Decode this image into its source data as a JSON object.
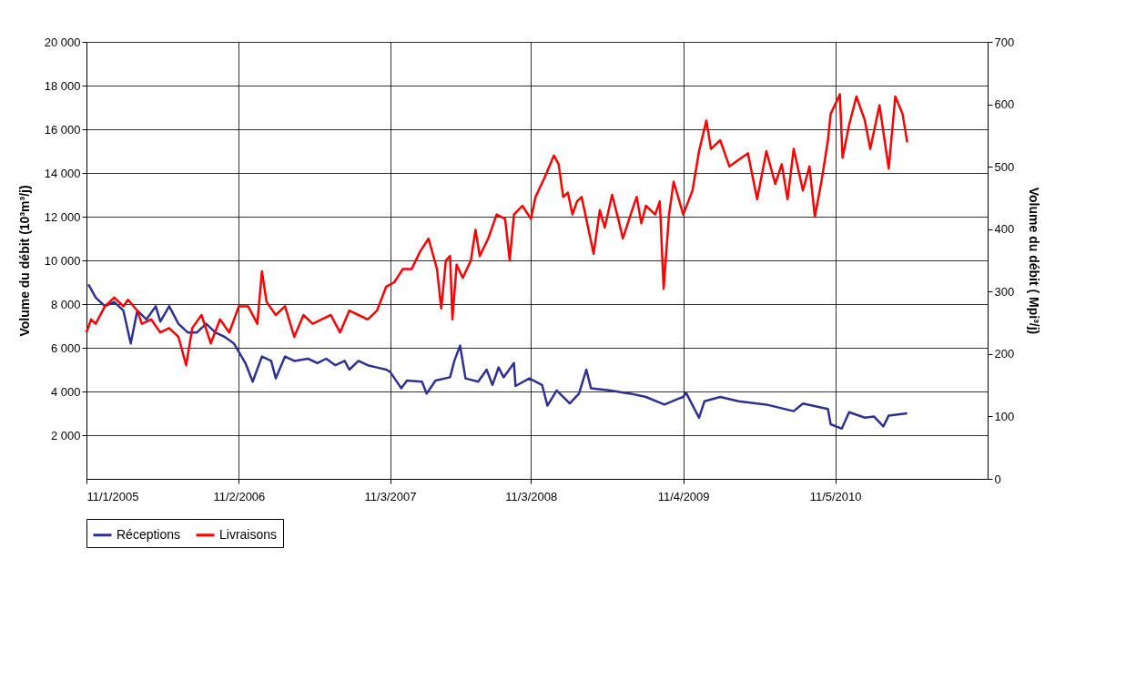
{
  "chart_data": {
    "type": "line",
    "ylabel": "Volume du débit (10³m³/j)",
    "y2label": "Volume du débit ( Mpi³/j)",
    "xlim": [
      "2005-01-11",
      "2011-06-11"
    ],
    "xticks": [
      {
        "value": "2005-01-11",
        "label": "11/1/2005"
      },
      {
        "value": "2006-02-11",
        "label": "11/2/2006"
      },
      {
        "value": "2007-03-11",
        "label": "11/3/2007"
      },
      {
        "value": "2008-03-11",
        "label": "11/3/2008"
      },
      {
        "value": "2009-04-11",
        "label": "11/4/2009"
      },
      {
        "value": "2010-05-11",
        "label": "11/5/2010"
      }
    ],
    "ylim": [
      0,
      20000
    ],
    "yticks": [
      2000,
      4000,
      6000,
      8000,
      10000,
      12000,
      14000,
      16000,
      18000,
      20000
    ],
    "y2lim": [
      0,
      700
    ],
    "y2ticks": [
      0,
      100,
      200,
      300,
      400,
      500,
      600,
      700
    ],
    "grid": true,
    "legend": "bottom",
    "marker": "none",
    "line_style": "solid",
    "series": [
      {
        "name": "Réceptions",
        "color": "#2e3192",
        "x": [
          "2005-01-16",
          "2005-02-04",
          "2005-02-28",
          "2005-03-24",
          "2005-04-17",
          "2005-05-06",
          "2005-05-23",
          "2005-06-16",
          "2005-07-10",
          "2005-07-22",
          "2005-08-14",
          "2005-09-07",
          "2005-10-01",
          "2005-10-25",
          "2005-11-18",
          "2005-12-12",
          "2006-01-05",
          "2006-01-29",
          "2006-02-28",
          "2006-03-19",
          "2006-04-12",
          "2006-05-06",
          "2006-05-18",
          "2006-06-11",
          "2006-07-05",
          "2006-08-10",
          "2006-09-03",
          "2006-09-26",
          "2006-10-20",
          "2006-11-13",
          "2006-11-25",
          "2006-12-19",
          "2007-01-12",
          "2007-02-05",
          "2007-03-01",
          "2007-03-11",
          "2007-04-09",
          "2007-04-24",
          "2007-06-02",
          "2007-06-14",
          "2007-07-07",
          "2007-08-14",
          "2007-08-25",
          "2007-09-09",
          "2007-09-23",
          "2007-10-26",
          "2007-11-17",
          "2007-12-02",
          "2007-12-18",
          "2007-12-31",
          "2008-01-27",
          "2008-01-31",
          "2008-03-07",
          "2008-04-09",
          "2008-04-23",
          "2008-05-17",
          "2008-06-20",
          "2008-07-14",
          "2008-08-02",
          "2008-08-14",
          "2008-10-01",
          "2008-11-25",
          "2009-01-04",
          "2009-02-21",
          "2009-04-03",
          "2009-04-11",
          "2009-04-18",
          "2009-05-22",
          "2009-06-05",
          "2009-07-16",
          "2009-09-02",
          "2009-11-13",
          "2010-01-23",
          "2010-02-16",
          "2010-04-22",
          "2010-04-29",
          "2010-05-28",
          "2010-06-16",
          "2010-07-27",
          "2010-08-20",
          "2010-09-13",
          "2010-09-27",
          "2010-11-14"
        ],
        "values": [
          8900,
          8300,
          7900,
          8100,
          7700,
          6200,
          7700,
          7300,
          7900,
          7200,
          7900,
          7100,
          6700,
          6700,
          7100,
          6700,
          6500,
          6200,
          5300,
          4450,
          5600,
          5400,
          4600,
          5600,
          5400,
          5500,
          5300,
          5500,
          5200,
          5400,
          5000,
          5400,
          5200,
          5100,
          5000,
          4900,
          4150,
          4500,
          4450,
          3900,
          4500,
          4650,
          5400,
          6100,
          4600,
          4450,
          5000,
          4300,
          5100,
          4650,
          5300,
          4250,
          4600,
          4300,
          3350,
          4050,
          3450,
          3900,
          5000,
          4150,
          4050,
          3900,
          3750,
          3400,
          3700,
          3750,
          3950,
          2800,
          3550,
          3750,
          3550,
          3400,
          3100,
          3450,
          3200,
          2500,
          2300,
          3050,
          2800,
          2850,
          2400,
          2900,
          3000
        ]
      },
      {
        "name": "Livraisons",
        "color": "#ff0000",
        "x": [
          "2005-01-11",
          "2005-01-23",
          "2005-02-04",
          "2005-02-28",
          "2005-03-24",
          "2005-04-17",
          "2005-04-29",
          "2005-05-23",
          "2005-06-04",
          "2005-06-28",
          "2005-07-22",
          "2005-08-14",
          "2005-09-07",
          "2005-09-27",
          "2005-10-13",
          "2005-11-06",
          "2005-11-30",
          "2005-12-24",
          "2006-01-17",
          "2006-02-11",
          "2006-03-07",
          "2006-03-31",
          "2006-04-12",
          "2006-04-24",
          "2006-05-18",
          "2006-06-11",
          "2006-07-05",
          "2006-07-29",
          "2006-08-22",
          "2006-09-14",
          "2006-10-08",
          "2006-11-01",
          "2006-11-25",
          "2006-12-19",
          "2007-01-12",
          "2007-02-05",
          "2007-03-01",
          "2007-03-22",
          "2007-04-13",
          "2007-05-06",
          "2007-05-28",
          "2007-06-19",
          "2007-07-11",
          "2007-07-22",
          "2007-08-03",
          "2007-08-14",
          "2007-08-20",
          "2007-08-31",
          "2007-09-16",
          "2007-10-07",
          "2007-10-19",
          "2007-10-30",
          "2007-11-21",
          "2007-12-13",
          "2008-01-04",
          "2008-01-16",
          "2008-01-27",
          "2008-02-18",
          "2008-03-11",
          "2008-03-23",
          "2008-04-16",
          "2008-05-10",
          "2008-05-22",
          "2008-06-03",
          "2008-06-15",
          "2008-06-27",
          "2008-07-09",
          "2008-07-21",
          "2008-08-02",
          "2008-08-21",
          "2008-09-06",
          "2008-09-19",
          "2008-10-08",
          "2008-10-24",
          "2008-11-05",
          "2008-11-29",
          "2008-12-11",
          "2008-12-23",
          "2009-01-04",
          "2009-01-28",
          "2009-02-09",
          "2009-02-19",
          "2009-03-05",
          "2009-03-17",
          "2009-04-11",
          "2009-05-05",
          "2009-05-22",
          "2009-06-10",
          "2009-06-22",
          "2009-07-16",
          "2009-08-09",
          "2009-09-02",
          "2009-09-26",
          "2009-10-20",
          "2009-11-13",
          "2009-12-06",
          "2009-12-23",
          "2010-01-07",
          "2010-01-23",
          "2010-02-16",
          "2010-03-05",
          "2010-03-19",
          "2010-04-05",
          "2010-04-22",
          "2010-04-29",
          "2010-05-23",
          "2010-05-30",
          "2010-06-16",
          "2010-07-05",
          "2010-07-27",
          "2010-08-10",
          "2010-09-03",
          "2010-09-27",
          "2010-10-14",
          "2010-11-02",
          "2010-11-14"
        ],
        "values": [
          6700,
          7300,
          7100,
          7900,
          8300,
          7900,
          8200,
          7700,
          7100,
          7300,
          6700,
          6900,
          6500,
          5200,
          6900,
          7500,
          6200,
          7300,
          6700,
          7900,
          7900,
          7100,
          9500,
          8100,
          7500,
          7900,
          6500,
          7500,
          7100,
          7300,
          7500,
          6700,
          7700,
          7500,
          7300,
          7700,
          8800,
          9000,
          9600,
          9600,
          10400,
          11000,
          9600,
          7800,
          10000,
          10200,
          7300,
          9800,
          9200,
          10000,
          11400,
          10200,
          11000,
          12100,
          11900,
          10000,
          12100,
          12500,
          11900,
          12900,
          13800,
          14800,
          14400,
          12900,
          13100,
          12100,
          12700,
          12900,
          11900,
          10300,
          12300,
          11500,
          13000,
          11900,
          11000,
          12300,
          12900,
          11700,
          12500,
          12100,
          12700,
          8700,
          12100,
          13600,
          12100,
          13200,
          15000,
          16400,
          15100,
          15500,
          14300,
          14600,
          14900,
          12800,
          15000,
          13500,
          14400,
          12800,
          15100,
          13200,
          14300,
          12000,
          13600,
          15500,
          16700,
          17600,
          14700,
          16200,
          17500,
          16400,
          15100,
          17100,
          14200,
          17500,
          16700,
          15400
        ]
      }
    ]
  }
}
